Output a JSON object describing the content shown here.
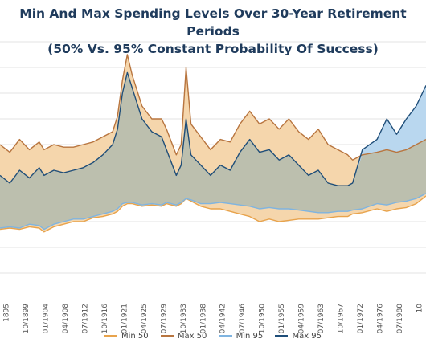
{
  "chart_data": {
    "type": "area",
    "title": "Min And Max Spending Levels Over 30-Year Retirement Periods",
    "subtitle": "(50% Vs. 95% Constant Probability Of Success)",
    "x_tick_labels": [
      "1895",
      "10/1899",
      "01/1904",
      "04/1908",
      "07/1912",
      "10/1916",
      "01/1921",
      "04/1925",
      "07/1929",
      "10/1933",
      "01/1938",
      "04/1942",
      "07/1946",
      "10/1950",
      "01/1955",
      "04/1959",
      "07/1963",
      "10/1967",
      "01/1972",
      "04/1976",
      "07/1980",
      "10"
    ],
    "xlim": [
      1895,
      1982
    ],
    "ylim": [
      0,
      100
    ],
    "grid": true,
    "legend_position": "bottom",
    "series": [
      {
        "name": "Min 50",
        "color": "#e8a34c",
        "x": [
          1895,
          1897,
          1899,
          1901,
          1903,
          1904,
          1906,
          1908,
          1910,
          1912,
          1914,
          1916,
          1918,
          1919,
          1920,
          1921,
          1922,
          1924,
          1926,
          1928,
          1929,
          1931,
          1932,
          1933,
          1934,
          1936,
          1938,
          1940,
          1942,
          1944,
          1946,
          1948,
          1950,
          1952,
          1954,
          1956,
          1958,
          1960,
          1962,
          1964,
          1966,
          1967,
          1969,
          1972,
          1974,
          1976,
          1978,
          1980,
          1982
        ],
        "values": [
          27,
          27.5,
          27,
          28,
          27.5,
          26,
          28,
          29,
          30,
          30,
          31.5,
          32,
          33,
          34,
          36,
          37,
          37,
          36,
          36.5,
          36,
          37,
          36,
          37,
          39,
          38,
          36,
          35,
          35,
          34,
          33,
          32,
          30,
          31,
          30,
          30.5,
          31,
          31,
          31,
          31.5,
          32,
          32,
          33,
          33.5,
          35,
          34,
          35,
          35.5,
          37,
          40
        ]
      },
      {
        "name": "Max 50",
        "color": "#b8753f",
        "x": [
          1895,
          1897,
          1899,
          1901,
          1903,
          1904,
          1906,
          1908,
          1910,
          1912,
          1914,
          1916,
          1918,
          1919,
          1920,
          1921,
          1922,
          1924,
          1926,
          1928,
          1929,
          1931,
          1932,
          1933,
          1934,
          1936,
          1938,
          1940,
          1942,
          1944,
          1946,
          1948,
          1950,
          1952,
          1954,
          1956,
          1958,
          1960,
          1962,
          1964,
          1966,
          1967,
          1969,
          1972,
          1974,
          1976,
          1978,
          1980,
          1982
        ],
        "values": [
          60,
          57,
          62,
          58,
          61,
          58,
          60,
          59,
          59,
          60,
          61,
          63,
          65,
          71,
          85,
          95,
          87,
          75,
          70,
          70,
          66,
          56,
          60,
          90,
          68,
          63,
          58,
          62,
          61,
          68,
          73,
          68,
          70,
          66,
          70,
          65,
          62,
          66,
          60,
          58,
          56,
          54,
          56,
          57,
          58,
          57,
          58,
          60,
          62
        ]
      },
      {
        "name": "Min 95",
        "color": "#7fb4e0",
        "x": [
          1895,
          1897,
          1899,
          1901,
          1903,
          1904,
          1906,
          1908,
          1910,
          1912,
          1914,
          1916,
          1918,
          1919,
          1920,
          1921,
          1922,
          1924,
          1926,
          1928,
          1929,
          1931,
          1932,
          1933,
          1934,
          1936,
          1938,
          1940,
          1942,
          1944,
          1946,
          1948,
          1950,
          1952,
          1954,
          1956,
          1958,
          1960,
          1962,
          1964,
          1966,
          1967,
          1969,
          1972,
          1974,
          1976,
          1978,
          1980,
          1982
        ],
        "values": [
          27.5,
          28,
          27.5,
          29,
          28.5,
          27,
          29,
          30,
          31,
          31,
          32,
          33,
          34,
          35,
          37,
          37.5,
          37.5,
          36.5,
          37,
          36.5,
          37.5,
          36.5,
          37.5,
          39,
          38.5,
          37,
          37,
          37.5,
          37,
          36.5,
          36,
          35,
          35.5,
          35,
          35,
          34.5,
          34,
          33.5,
          33.5,
          34,
          34,
          34.5,
          35,
          37,
          36.5,
          37.5,
          38,
          39,
          41
        ]
      },
      {
        "name": "Max 95",
        "color": "#1f4e79",
        "x": [
          1895,
          1897,
          1899,
          1901,
          1903,
          1904,
          1906,
          1908,
          1910,
          1912,
          1914,
          1916,
          1918,
          1919,
          1920,
          1921,
          1922,
          1924,
          1926,
          1928,
          1929,
          1931,
          1932,
          1933,
          1934,
          1936,
          1938,
          1940,
          1942,
          1944,
          1946,
          1948,
          1950,
          1952,
          1954,
          1956,
          1958,
          1960,
          1962,
          1964,
          1966,
          1967,
          1969,
          1972,
          1974,
          1976,
          1978,
          1980,
          1982
        ],
        "values": [
          48,
          45,
          50,
          47,
          51,
          48,
          50,
          49,
          50,
          51,
          53,
          56,
          60,
          66,
          80,
          88,
          82,
          70,
          65,
          63,
          58,
          48,
          52,
          70,
          56,
          52,
          48,
          52,
          50,
          57,
          62,
          57,
          58,
          54,
          56,
          52,
          48,
          50,
          45,
          44,
          44,
          45,
          58,
          62,
          70,
          64,
          70,
          75,
          83
        ]
      }
    ]
  },
  "legend": [
    {
      "label": "Min 50",
      "color": "#e8a34c"
    },
    {
      "label": "Max 50",
      "color": "#b8753f"
    },
    {
      "label": "Min 95",
      "color": "#7fb4e0"
    },
    {
      "label": "Max 95",
      "color": "#1f4e79"
    }
  ],
  "fills": {
    "band_50": "#f5d6ac",
    "band_95": "#b9d7ef",
    "overlap": "#bcbfae"
  }
}
